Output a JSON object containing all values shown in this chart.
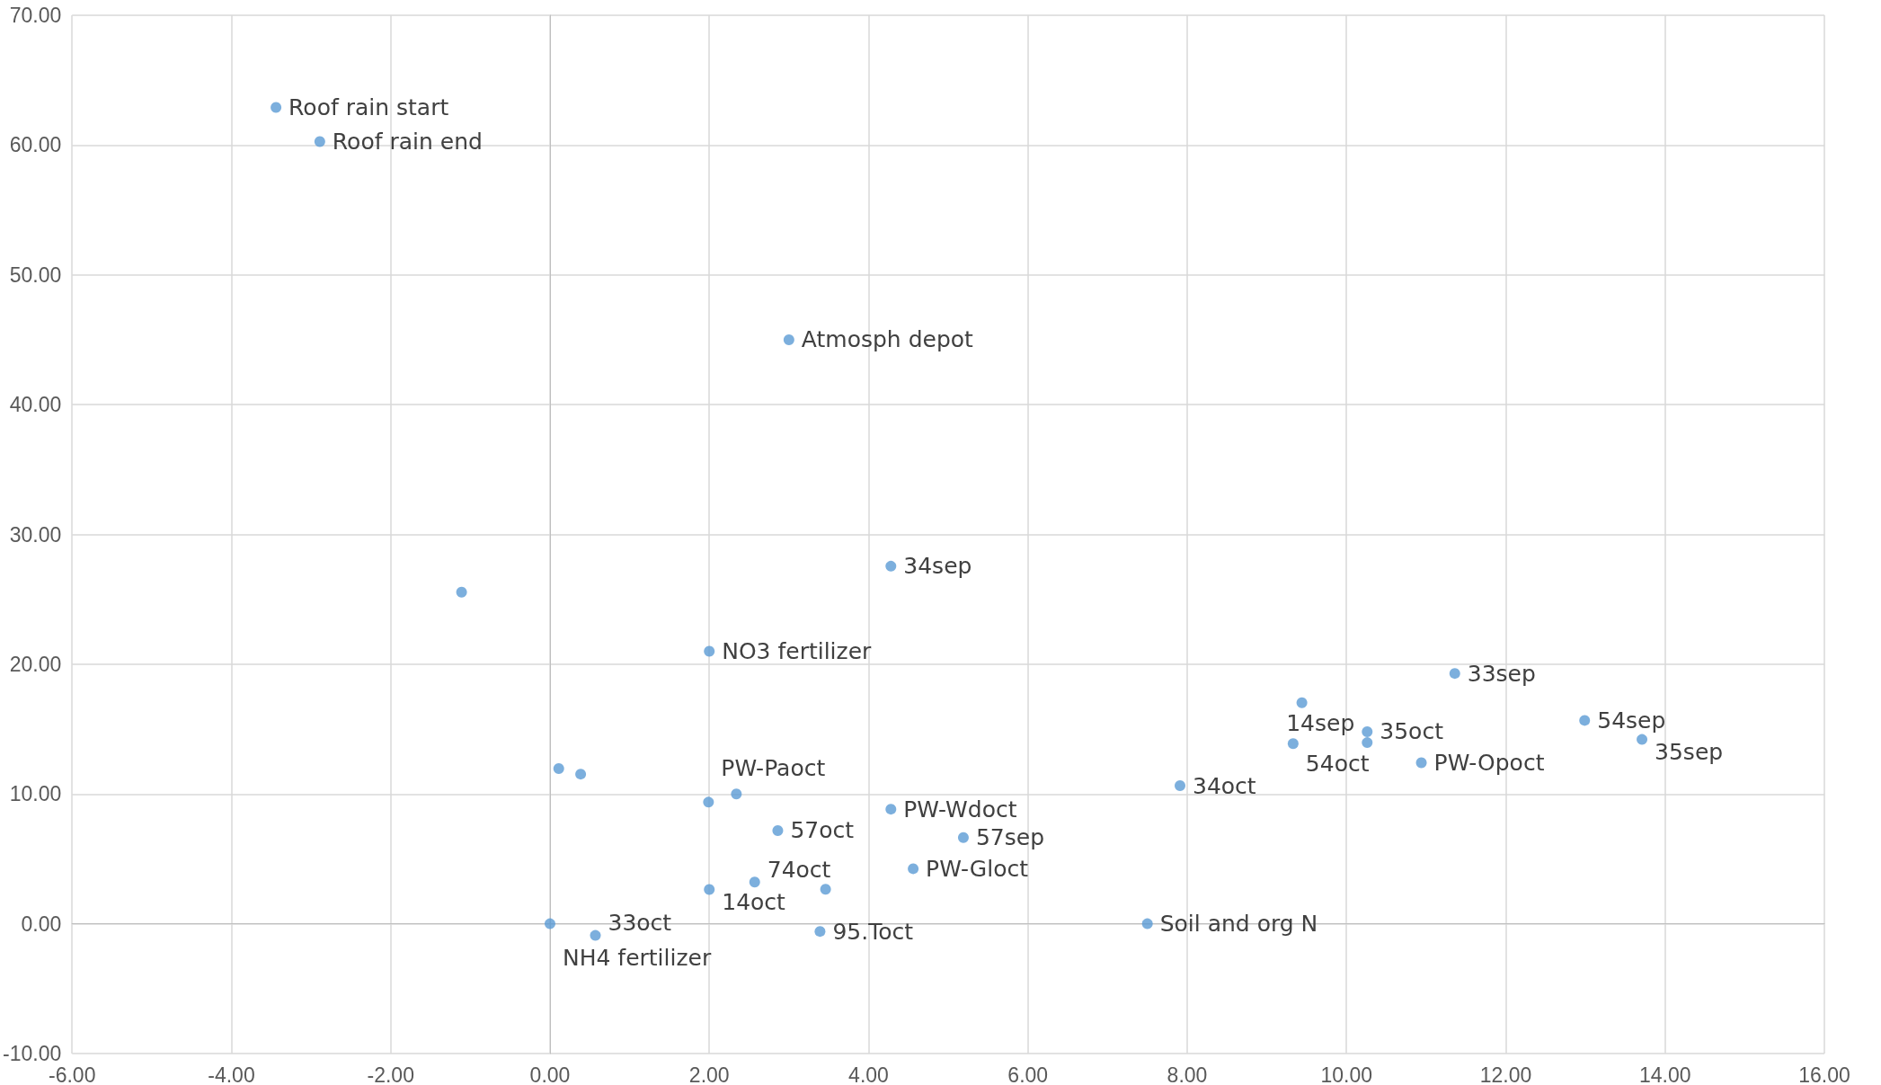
{
  "chart_data": {
    "type": "scatter",
    "color": "#5b9bd5",
    "marker": "circle",
    "grid": true,
    "x": [
      -3.44,
      -2.89,
      3.0,
      -1.11,
      4.28,
      2.0,
      11.36,
      9.44,
      12.99,
      10.26,
      13.71,
      9.33,
      10.26,
      10.94,
      0.11,
      0.385,
      7.91,
      2.34,
      1.99,
      4.28,
      2.86,
      5.19,
      4.56,
      2.57,
      2.0,
      3.46,
      0.0,
      0.57,
      3.39,
      7.5
    ],
    "values": [
      62.9,
      60.27,
      45.0,
      25.55,
      27.55,
      21.0,
      19.29,
      17.03,
      15.67,
      14.8,
      14.2,
      13.88,
      13.96,
      12.41,
      11.96,
      11.53,
      10.64,
      10.0,
      9.37,
      8.83,
      7.18,
      6.64,
      4.24,
      3.21,
      2.64,
      2.66,
      0.0,
      -0.9,
      -0.59,
      0.0
    ],
    "xlim": [
      -6,
      16
    ],
    "ylim": [
      -10,
      70
    ],
    "xticks": [
      {
        "value": -6,
        "label": "-6.00"
      },
      {
        "value": -4,
        "label": "-4.00"
      },
      {
        "value": -2,
        "label": "-2.00"
      },
      {
        "value": 0,
        "label": "0.00"
      },
      {
        "value": 2,
        "label": "2.00"
      },
      {
        "value": 4,
        "label": "4.00"
      },
      {
        "value": 6,
        "label": "6.00"
      },
      {
        "value": 8,
        "label": "8.00"
      },
      {
        "value": 10,
        "label": "10.00"
      },
      {
        "value": 12,
        "label": "12.00"
      },
      {
        "value": 14,
        "label": "14.00"
      },
      {
        "value": 16,
        "label": "16.00"
      }
    ],
    "yticks": [
      {
        "value": -10,
        "label": "-10.00"
      },
      {
        "value": 0,
        "label": "0.00"
      },
      {
        "value": 10,
        "label": "10.00"
      },
      {
        "value": 20,
        "label": "20.00"
      },
      {
        "value": 30,
        "label": "30.00"
      },
      {
        "value": 40,
        "label": "40.00"
      },
      {
        "value": 50,
        "label": "50.00"
      },
      {
        "value": 60,
        "label": "60.00"
      },
      {
        "value": 70,
        "label": "70.00"
      }
    ],
    "annotations": [
      {
        "text": "Roof rain start",
        "x": -3.44,
        "y": 62.9
      },
      {
        "text": "Roof rain end",
        "x": -2.89,
        "y": 60.27
      },
      {
        "text": "Atmosph depot",
        "x": 3.0,
        "y": 45.0
      },
      {
        "text": "34sep",
        "x": 4.28,
        "y": 27.55
      },
      {
        "text": "NO3 fertilizer",
        "x": 2.0,
        "y": 21.0
      },
      {
        "text": "33sep",
        "x": 11.36,
        "y": 19.29
      },
      {
        "text": "54sep",
        "x": 12.99,
        "y": 15.67
      },
      {
        "text": "35oct",
        "x": 10.26,
        "y": 14.8
      },
      {
        "text": "35sep",
        "x": 13.71,
        "y": 14.2
      },
      {
        "text": "54oct",
        "x": 9.33,
        "y": 13.88
      },
      {
        "text": "14sep",
        "x": 10.26,
        "y": 13.96
      },
      {
        "text": "PW-Opoct",
        "x": 10.94,
        "y": 12.41
      },
      {
        "text": "34oct",
        "x": 7.91,
        "y": 10.64
      },
      {
        "text": "PW-Paoct",
        "x": 1.99,
        "y": 9.37
      },
      {
        "text": "PW-Wdoct",
        "x": 4.28,
        "y": 8.83
      },
      {
        "text": "57oct",
        "x": 2.86,
        "y": 7.18
      },
      {
        "text": "57sep",
        "x": 5.19,
        "y": 6.64
      },
      {
        "text": "PW-Gloct",
        "x": 4.56,
        "y": 4.24
      },
      {
        "text": "74oct",
        "x": 2.57,
        "y": 3.21
      },
      {
        "text": "14oct",
        "x": 2.0,
        "y": 2.64
      },
      {
        "text": "NH4 fertilizer",
        "x": 0.0,
        "y": 0.0
      },
      {
        "text": "33oct",
        "x": 0.57,
        "y": -0.9
      },
      {
        "text": "95.Toct",
        "x": 3.39,
        "y": -0.59
      },
      {
        "text": "Soil and org N",
        "x": 7.5,
        "y": 0.0
      }
    ]
  }
}
